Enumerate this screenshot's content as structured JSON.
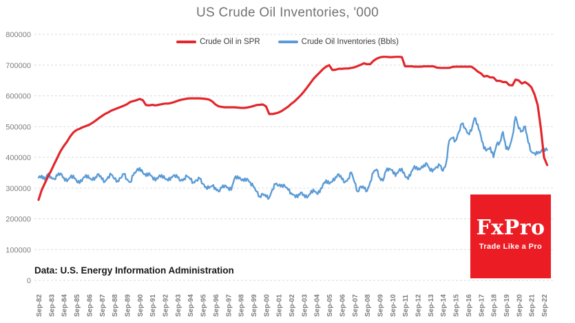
{
  "title": "US Crude Oil Inventories, '000",
  "source_note": "Data: U.S. Energy Information Administration",
  "logo": {
    "brand": "FxPro",
    "tagline": "Trade Like a Pro",
    "bg_color": "#ec1c24",
    "text_color": "#ffffff"
  },
  "colors": {
    "spr_line": "#e2262b",
    "inventories_line": "#5b9bd5",
    "gridline": "#d9d9d9",
    "axis_label": "#7d7d7d",
    "title_text": "#717171",
    "legend_text": "#3b3b3b"
  },
  "chart_data": {
    "type": "line",
    "title": "US Crude Oil Inventories, '000",
    "xlabel": "",
    "ylabel": "",
    "ylim": [
      0,
      800000
    ],
    "y_ticks": [
      0,
      100000,
      200000,
      300000,
      400000,
      500000,
      600000,
      700000,
      800000
    ],
    "grid": "horizontal-dashed",
    "legend_position": "top-center",
    "sampling": "quarterly estimates, Sep-1982 through Dec-2022",
    "x_tick_labels": [
      "Sep-82",
      "Sep-83",
      "Sep-84",
      "Sep-85",
      "Sep-86",
      "Sep-87",
      "Sep-88",
      "Sep-89",
      "Sep-90",
      "Sep-91",
      "Sep-92",
      "Sep-93",
      "Sep-94",
      "Sep-95",
      "Sep-96",
      "Sep-97",
      "Sep-98",
      "Sep-99",
      "Sep-00",
      "Sep-01",
      "Sep-02",
      "Sep-03",
      "Sep-04",
      "Sep-05",
      "Sep-06",
      "Sep-07",
      "Sep-08",
      "Sep-09",
      "Sep-10",
      "Sep-11",
      "Sep-12",
      "Sep-13",
      "Sep-14",
      "Sep-15",
      "Sep-16",
      "Sep-17",
      "Sep-18",
      "Sep-19",
      "Sep-20",
      "Sep-21",
      "Sep-22"
    ],
    "series": [
      {
        "name": "Crude Oil Inventories (Bbls)",
        "color": "#5b9bd5",
        "stroke_width": 2.4,
        "jitter_hint": 6200,
        "values": [
          334000,
          341000,
          327000,
          346000,
          336000,
          329000,
          341000,
          348000,
          334000,
          322000,
          334000,
          341000,
          324000,
          316000,
          331000,
          343000,
          332000,
          326000,
          336000,
          346000,
          329000,
          321000,
          337000,
          344000,
          330000,
          324000,
          333000,
          346000,
          329000,
          319000,
          342000,
          356000,
          366000,
          350000,
          339000,
          349000,
          337000,
          324000,
          337000,
          343000,
          331000,
          324000,
          336000,
          343000,
          334000,
          324000,
          331000,
          339000,
          329000,
          319000,
          326000,
          331000,
          314000,
          304000,
          300000,
          307000,
          301000,
          289000,
          301000,
          309000,
          302000,
          294000,
          331000,
          339000,
          329000,
          323000,
          331000,
          319000,
          304000,
          289000,
          273000,
          281000,
          272000,
          269000,
          296000,
          313000,
          308000,
          311000,
          306000,
          294000,
          284000,
          277000,
          270000,
          286000,
          279000,
          269000,
          281000,
          296000,
          284000,
          286000,
          311000,
          326000,
          314000,
          321000,
          336000,
          346000,
          329000,
          319000,
          331000,
          351000,
          319000,
          289000,
          306000,
          299000,
          291000,
          321000,
          351000,
          361000,
          334000,
          324000,
          356000,
          364000,
          359000,
          339000,
          356000,
          364000,
          339000,
          329000,
          354000,
          372000,
          359000,
          364000,
          376000,
          378000,
          356000,
          361000,
          369000,
          374000,
          356000,
          381000,
          455000,
          463000,
          454000,
          482000,
          510000,
          495000,
          478000,
          486000,
          528000,
          508000,
          470000,
          428000,
          425000,
          433000,
          400000,
          442000,
          449000,
          483000,
          427000,
          431000,
          469000,
          532000,
          494000,
          486000,
          501000,
          448000,
          418000,
          414000,
          412000,
          418000,
          428000,
          424000
        ]
      },
      {
        "name": "Crude Oil in SPR",
        "color": "#e2262b",
        "stroke_width": 3.2,
        "jitter_hint": 0,
        "values": [
          262000,
          294000,
          316000,
          338000,
          357000,
          379000,
          400000,
          421000,
          437000,
          451000,
          468000,
          481000,
          489000,
          493000,
          498000,
          502000,
          506000,
          512000,
          519000,
          527000,
          534000,
          541000,
          546000,
          552000,
          556000,
          560000,
          564000,
          568000,
          573000,
          580000,
          583000,
          586000,
          590000,
          586000,
          570000,
          569000,
          571000,
          569000,
          571000,
          573000,
          575000,
          575000,
          577000,
          580000,
          584000,
          587000,
          589000,
          591000,
          592000,
          592000,
          592000,
          592000,
          591000,
          590000,
          588000,
          582000,
          572000,
          566000,
          564000,
          563000,
          563000,
          563000,
          563000,
          562000,
          561000,
          561000,
          562000,
          564000,
          567000,
          570000,
          571000,
          572000,
          566000,
          541000,
          541000,
          543000,
          546000,
          551000,
          558000,
          565000,
          574000,
          582000,
          592000,
          602000,
          614000,
          627000,
          641000,
          655000,
          666000,
          676000,
          687000,
          695000,
          700000,
          684000,
          685000,
          688000,
          688000,
          689000,
          689000,
          691000,
          693000,
          697000,
          701000,
          706000,
          703000,
          703000,
          714000,
          721000,
          725000,
          727000,
          727000,
          726000,
          726000,
          727000,
          727000,
          726000,
          696000,
          696000,
          696000,
          695000,
          695000,
          695000,
          696000,
          696000,
          696000,
          696000,
          692000,
          691000,
          691000,
          691000,
          691000,
          694000,
          695000,
          695000,
          695000,
          695000,
          695000,
          695000,
          688000,
          679000,
          673000,
          663000,
          665000,
          660000,
          660000,
          649000,
          649000,
          645000,
          645000,
          635000,
          634000,
          653000,
          650000,
          640000,
          645000,
          638000,
          628000,
          605000,
          570000,
          495000,
          400000,
          375000
        ]
      }
    ]
  }
}
